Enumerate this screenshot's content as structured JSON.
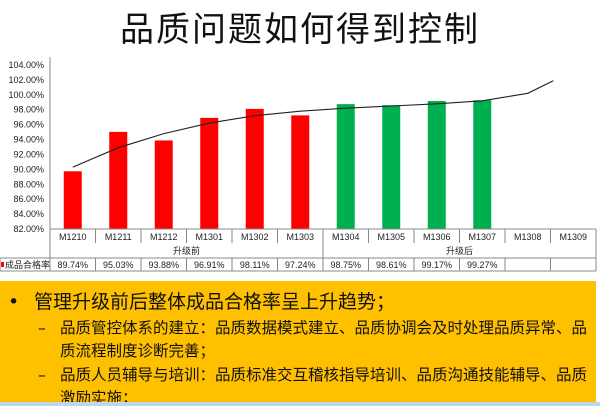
{
  "slide": {
    "title": "品质问题如何得到控制",
    "bullet_main": "管理升级前后整体成品合格率呈上升趋势；",
    "sub_bullets": [
      "品质管控体系的建立：品质数据模式建立、品质协调会及时处理品质异常、品质流程制度诊断完善；",
      "品质人员辅导与培训：品质标准交互稽核指导培训、品质沟通技能辅导、品质激励实施；"
    ],
    "colors": {
      "box": "#FFC000",
      "before": "#FF0000",
      "after": "#00B050"
    }
  },
  "chart_data": {
    "type": "bar",
    "categories": [
      "M1210",
      "M1211",
      "M1212",
      "M1301",
      "M1302",
      "M1303",
      "M1304",
      "M1305",
      "M1306",
      "M1307",
      "M1308",
      "M1309"
    ],
    "groups": [
      {
        "label": "升级前",
        "span": 6
      },
      {
        "label": "升级后",
        "span": 6
      }
    ],
    "series": [
      {
        "name": "成品合格率",
        "values": [
          89.74,
          95.03,
          93.88,
          96.91,
          98.11,
          97.24,
          98.75,
          98.61,
          99.17,
          99.27,
          null,
          null
        ],
        "value_labels": [
          "89.74%",
          "95.03%",
          "93.88%",
          "96.91%",
          "98.11%",
          "97.24%",
          "98.75%",
          "98.61%",
          "99.17%",
          "99.27%",
          "",
          ""
        ]
      }
    ],
    "bar_colors": [
      "#FF0000",
      "#FF0000",
      "#FF0000",
      "#FF0000",
      "#FF0000",
      "#FF0000",
      "#00B050",
      "#00B050",
      "#00B050",
      "#00B050",
      "",
      ""
    ],
    "trendline": [
      90.3,
      92.9,
      94.8,
      96.2,
      97.2,
      97.8,
      98.2,
      98.5,
      98.8,
      99.2,
      100.2,
      101.9
    ],
    "yticks": [
      "82.00%",
      "84.00%",
      "86.00%",
      "88.00%",
      "90.00%",
      "92.00%",
      "94.00%",
      "96.00%",
      "98.00%",
      "100.00%",
      "102.00%",
      "104.00%"
    ],
    "ylim": [
      82,
      104
    ],
    "grid": false,
    "legend": "data-table"
  }
}
